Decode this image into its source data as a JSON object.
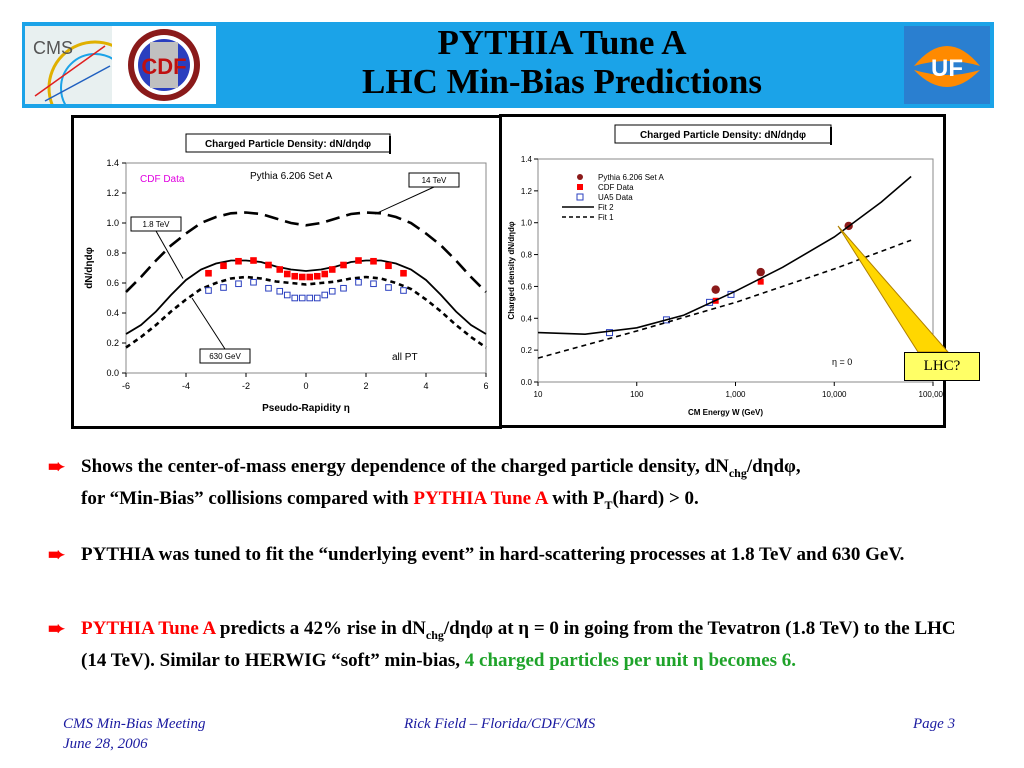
{
  "header": {
    "title_line1": "PYTHIA Tune A",
    "title_line2": "LHC Min-Bias Predictions",
    "logos": {
      "cms": "CMS",
      "cdf": "CDF",
      "uf": "UF"
    }
  },
  "chart_data": [
    {
      "type": "line",
      "title": "Charged Particle Density: dN/dηdφ",
      "xlabel": "Pseudo-Rapidity η",
      "ylabel": "dN/dηdφ",
      "xlim": [
        -6,
        6
      ],
      "ylim": [
        0,
        1.4
      ],
      "xticks": [
        "-6",
        "-4",
        "-2",
        "0",
        "2",
        "4",
        "6"
      ],
      "yticks": [
        "0.0",
        "0.2",
        "0.4",
        "0.6",
        "0.8",
        "1.0",
        "1.2",
        "1.4"
      ],
      "annotations": {
        "cdf_data": "CDF Data",
        "pythia": "Pythia 6.206 Set A",
        "lhc": "14 TeV",
        "tev": "1.8 TeV",
        "sps": "630 GeV",
        "allpt": "all PT"
      },
      "series": [
        {
          "name": "14 TeV",
          "style": "long-dash",
          "x": [
            -6,
            -5.5,
            -5,
            -4.5,
            -4,
            -3.5,
            -3,
            -2.5,
            -2,
            -1.5,
            -1,
            -0.5,
            0,
            0.5,
            1,
            1.5,
            2,
            2.5,
            3,
            3.5,
            4,
            4.5,
            5,
            5.5,
            6
          ],
          "y": [
            0.54,
            0.64,
            0.75,
            0.85,
            0.93,
            1.0,
            1.04,
            1.065,
            1.07,
            1.06,
            1.03,
            1.0,
            0.985,
            1.0,
            1.03,
            1.06,
            1.07,
            1.065,
            1.04,
            1.0,
            0.93,
            0.85,
            0.75,
            0.64,
            0.54
          ]
        },
        {
          "name": "1.8 TeV",
          "style": "solid",
          "x": [
            -6,
            -5.5,
            -5,
            -4.5,
            -4,
            -3.5,
            -3,
            -2.5,
            -2,
            -1.5,
            -1,
            -0.5,
            0,
            0.5,
            1,
            1.5,
            2,
            2.5,
            3,
            3.5,
            4,
            4.5,
            5,
            5.5,
            6
          ],
          "y": [
            0.26,
            0.32,
            0.41,
            0.52,
            0.62,
            0.69,
            0.73,
            0.75,
            0.75,
            0.74,
            0.71,
            0.69,
            0.68,
            0.69,
            0.71,
            0.74,
            0.75,
            0.75,
            0.73,
            0.69,
            0.62,
            0.52,
            0.41,
            0.32,
            0.26
          ]
        },
        {
          "name": "630 GeV",
          "style": "dotted",
          "x": [
            -6,
            -5.5,
            -5,
            -4.5,
            -4,
            -3.5,
            -3,
            -2.5,
            -2,
            -1.5,
            -1,
            -0.5,
            0,
            0.5,
            1,
            1.5,
            2,
            2.5,
            3,
            3.5,
            4,
            4.5,
            5,
            5.5,
            6
          ],
          "y": [
            0.17,
            0.24,
            0.32,
            0.41,
            0.49,
            0.56,
            0.6,
            0.63,
            0.64,
            0.63,
            0.61,
            0.6,
            0.59,
            0.6,
            0.61,
            0.63,
            0.64,
            0.63,
            0.6,
            0.56,
            0.49,
            0.41,
            0.32,
            0.24,
            0.17
          ]
        },
        {
          "name": "CDF 1.8 TeV",
          "marker": "filled-square",
          "x": [
            -3.25,
            -2.75,
            -2.25,
            -1.75,
            -1.25,
            -0.875,
            -0.625,
            -0.375,
            -0.125,
            0.125,
            0.375,
            0.625,
            0.875,
            1.25,
            1.75,
            2.25,
            2.75,
            3.25
          ],
          "y": [
            0.665,
            0.715,
            0.745,
            0.75,
            0.72,
            0.69,
            0.66,
            0.645,
            0.64,
            0.64,
            0.645,
            0.66,
            0.69,
            0.72,
            0.75,
            0.745,
            0.715,
            0.665
          ]
        },
        {
          "name": "CDF 630 GeV",
          "marker": "open-square",
          "x": [
            -3.25,
            -2.75,
            -2.25,
            -1.75,
            -1.25,
            -0.875,
            -0.625,
            -0.375,
            -0.125,
            0.125,
            0.375,
            0.625,
            0.875,
            1.25,
            1.75,
            2.25,
            2.75,
            3.25
          ],
          "y": [
            0.55,
            0.57,
            0.595,
            0.605,
            0.565,
            0.545,
            0.52,
            0.5,
            0.5,
            0.5,
            0.5,
            0.52,
            0.545,
            0.565,
            0.605,
            0.595,
            0.57,
            0.55
          ]
        }
      ]
    },
    {
      "type": "scatter",
      "title": "Charged Particle Density: dN/dηdφ",
      "xlabel": "CM Energy W (GeV)",
      "ylabel": "Charged density dN/dηdφ",
      "xscale": "log",
      "xlim": [
        10,
        100000
      ],
      "ylim": [
        0,
        1.4
      ],
      "xticks": [
        "10",
        "100",
        "1,000",
        "10,000",
        "100,000"
      ],
      "yticks": [
        "0.0",
        "0.2",
        "0.4",
        "0.6",
        "0.8",
        "1.0",
        "1.2",
        "1.4"
      ],
      "annotation": "η = 0",
      "legend": [
        "Pythia 6.206 Set A",
        "CDF Data",
        "UA5 Data",
        "Fit 2",
        "Fit 1"
      ],
      "series": [
        {
          "name": "Pythia 6.206 Set A",
          "marker": "filled-circle",
          "x": [
            630,
            1800,
            14000
          ],
          "y": [
            0.58,
            0.69,
            0.98
          ]
        },
        {
          "name": "CDF Data",
          "marker": "filled-square",
          "x": [
            630,
            1800
          ],
          "y": [
            0.51,
            0.63
          ]
        },
        {
          "name": "UA5 Data",
          "marker": "open-square",
          "x": [
            53,
            200,
            546,
            900
          ],
          "y": [
            0.31,
            0.39,
            0.5,
            0.55
          ]
        },
        {
          "name": "Fit 2",
          "style": "solid",
          "x": [
            10,
            30,
            100,
            300,
            1000,
            3000,
            10000,
            30000,
            60000
          ],
          "y": [
            0.31,
            0.3,
            0.34,
            0.42,
            0.57,
            0.72,
            0.91,
            1.13,
            1.29
          ]
        },
        {
          "name": "Fit 1",
          "style": "dotted",
          "x": [
            10,
            100,
            1000,
            10000,
            60000
          ],
          "y": [
            0.15,
            0.32,
            0.5,
            0.71,
            0.89
          ]
        }
      ]
    }
  ],
  "callout": {
    "label": "LHC?"
  },
  "bullets": {
    "b1": {
      "pre": "Shows the center-of-mass energy dependence of the charged particle density, dN",
      "sub1": "chg",
      "mid1": "/dηdφ,",
      "line2_pre": "for “Min-Bias” collisions compared with ",
      "red": "PYTHIA Tune A",
      "mid2": " with P",
      "sub2": "T",
      "post": "(hard) > 0."
    },
    "b2": {
      "text": "PYTHIA was tuned to fit the “underlying event” in hard-scattering processes at 1.8 TeV and 630 GeV."
    },
    "b3": {
      "red": "PYTHIA Tune A",
      "pre": " predicts a 42% rise in dN",
      "sub": "chg",
      "mid": "/dηdφ at η = 0 in going from the Tevatron (1.8 TeV) to the LHC (14 TeV).  Similar to HERWIG “soft” min-bias, ",
      "green": "4 charged particles per unit η becomes 6."
    }
  },
  "footer": {
    "meeting": "CMS Min-Bias Meeting",
    "date": "June 28, 2006",
    "author": "Rick Field – Florida/CDF/CMS",
    "page": "Page 3"
  },
  "colors": {
    "header": "#1ba3e8",
    "accent_red": "#ff0000",
    "accent_green": "#1fa32a",
    "footer": "#1a1aa0",
    "callout": "#ffff66",
    "cdf_marker": "#ff0000",
    "pythia_marker": "#8b1a1a",
    "ua5_marker": "#2a3fbf"
  }
}
